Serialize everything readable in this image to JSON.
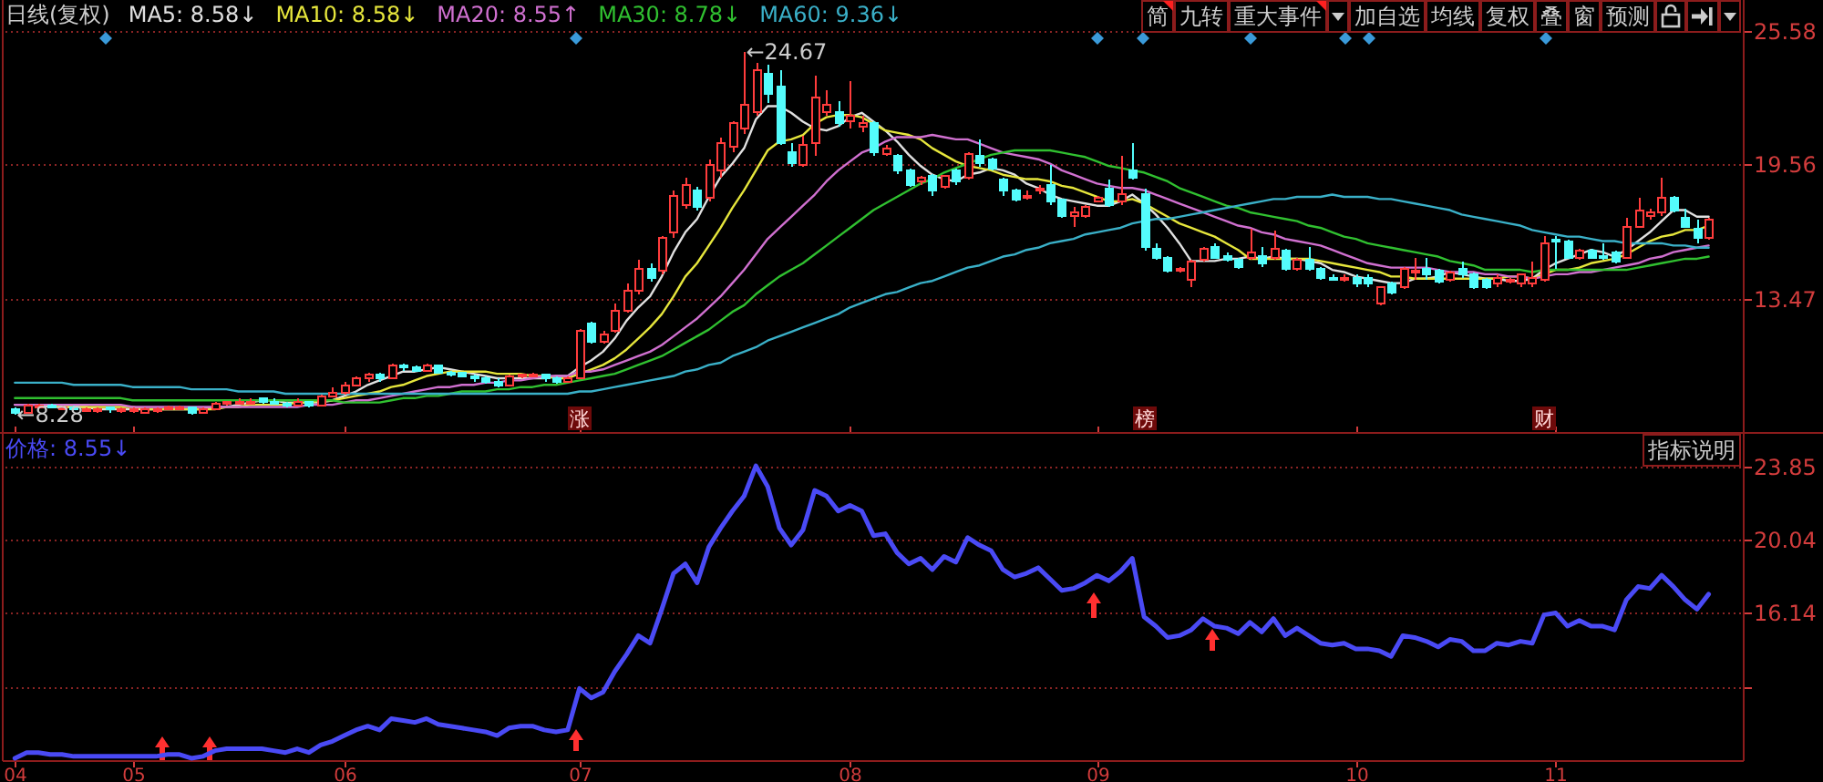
{
  "chart_data": [
    {
      "type": "candlestick",
      "title": "日线(复权)",
      "categories": [
        "04",
        null,
        null,
        null,
        null,
        null,
        null,
        null,
        null,
        null,
        "05",
        null,
        null,
        null,
        null,
        null,
        null,
        null,
        null,
        null,
        null,
        null,
        null,
        null,
        null,
        null,
        null,
        null,
        "06",
        null,
        null,
        null,
        null,
        null,
        null,
        null,
        null,
        null,
        null,
        null,
        null,
        null,
        null,
        null,
        null,
        null,
        null,
        null,
        "07",
        null,
        null,
        null,
        null,
        null,
        null,
        null,
        null,
        null,
        null,
        null,
        null,
        null,
        null,
        null,
        null,
        null,
        null,
        null,
        null,
        null,
        null,
        "08",
        null,
        null,
        null,
        null,
        null,
        null,
        null,
        null,
        null,
        null,
        null,
        null,
        null,
        null,
        null,
        null,
        null,
        null,
        null,
        null,
        "09",
        null,
        null,
        null,
        null,
        null,
        null,
        null,
        null,
        null,
        null,
        null,
        null,
        null,
        null,
        null,
        null,
        null,
        null,
        null,
        null,
        null,
        "10",
        null,
        null,
        null,
        null,
        null,
        null,
        null,
        null,
        null,
        null,
        null,
        null,
        null,
        null,
        null,
        null,
        "11",
        null,
        null,
        null,
        null,
        null,
        null,
        null,
        null,
        null,
        null,
        null,
        null,
        null
      ],
      "ohlc": [
        [
          8.5,
          8.6,
          8.28,
          8.4
        ],
        [
          8.4,
          8.8,
          8.4,
          8.7
        ],
        [
          8.6,
          8.8,
          8.6,
          8.7
        ],
        [
          8.7,
          8.8,
          8.6,
          8.6
        ],
        [
          8.6,
          8.7,
          8.5,
          8.6
        ],
        [
          8.6,
          8.7,
          8.5,
          8.5
        ],
        [
          8.5,
          8.6,
          8.5,
          8.5
        ],
        [
          8.5,
          8.6,
          8.4,
          8.5
        ],
        [
          8.6,
          8.6,
          8.4,
          8.5
        ],
        [
          8.5,
          8.6,
          8.4,
          8.5
        ],
        [
          8.5,
          8.6,
          8.4,
          8.5
        ],
        [
          8.4,
          8.6,
          8.4,
          8.5
        ],
        [
          8.5,
          8.6,
          8.4,
          8.5
        ],
        [
          8.5,
          8.7,
          8.5,
          8.6
        ],
        [
          8.5,
          8.7,
          8.5,
          8.6
        ],
        [
          8.6,
          8.6,
          8.3,
          8.4
        ],
        [
          8.4,
          8.6,
          8.4,
          8.5
        ],
        [
          8.5,
          8.9,
          8.5,
          8.8
        ],
        [
          8.8,
          8.9,
          8.7,
          8.9
        ],
        [
          8.8,
          9.0,
          8.8,
          8.9
        ],
        [
          8.8,
          9.0,
          8.8,
          8.9
        ],
        [
          9.0,
          9.0,
          8.8,
          8.9
        ],
        [
          8.9,
          9.0,
          8.8,
          8.8
        ],
        [
          8.8,
          8.9,
          8.6,
          8.7
        ],
        [
          8.7,
          9.0,
          8.7,
          8.9
        ],
        [
          8.9,
          8.9,
          8.6,
          8.7
        ],
        [
          8.7,
          9.2,
          8.7,
          9.1
        ],
        [
          9.1,
          9.5,
          9.1,
          9.3
        ],
        [
          9.3,
          9.8,
          9.2,
          9.6
        ],
        [
          9.6,
          10.0,
          9.6,
          9.9
        ],
        [
          9.9,
          10.2,
          9.8,
          10.1
        ],
        [
          10.1,
          10.2,
          9.8,
          9.9
        ],
        [
          9.9,
          10.6,
          9.9,
          10.5
        ],
        [
          10.5,
          10.6,
          10.3,
          10.4
        ],
        [
          10.4,
          10.5,
          10.3,
          10.3
        ],
        [
          10.3,
          10.6,
          10.3,
          10.5
        ],
        [
          10.5,
          10.5,
          10.2,
          10.2
        ],
        [
          10.2,
          10.3,
          10.0,
          10.1
        ],
        [
          10.2,
          10.2,
          10.0,
          10.0
        ],
        [
          10.0,
          10.1,
          9.8,
          9.9
        ],
        [
          9.9,
          10.0,
          9.7,
          9.8
        ],
        [
          9.8,
          9.9,
          9.5,
          9.6
        ],
        [
          9.6,
          10.1,
          9.6,
          10.0
        ],
        [
          10.0,
          10.1,
          9.9,
          10.1
        ],
        [
          10.0,
          10.2,
          10.0,
          10.1
        ],
        [
          10.1,
          10.1,
          9.8,
          9.9
        ],
        [
          9.9,
          10.0,
          9.7,
          9.8
        ],
        [
          9.8,
          10.0,
          9.8,
          9.9
        ],
        [
          9.9,
          12.2,
          9.9,
          12.1
        ],
        [
          12.4,
          12.5,
          11.5,
          11.6
        ],
        [
          11.6,
          12.1,
          11.5,
          11.9
        ],
        [
          12.1,
          13.3,
          12.0,
          13.0
        ],
        [
          13.0,
          14.2,
          12.9,
          13.9
        ],
        [
          13.9,
          15.3,
          13.7,
          14.9
        ],
        [
          14.9,
          15.1,
          14.3,
          14.5
        ],
        [
          14.8,
          16.4,
          14.6,
          16.3
        ],
        [
          16.5,
          18.4,
          16.3,
          18.2
        ],
        [
          17.8,
          19.0,
          17.6,
          18.7
        ],
        [
          18.4,
          18.6,
          17.5,
          17.7
        ],
        [
          18.1,
          19.8,
          17.9,
          19.6
        ],
        [
          19.3,
          20.8,
          19.0,
          20.6
        ],
        [
          20.4,
          21.6,
          20.2,
          21.5
        ],
        [
          21.2,
          24.67,
          21.0,
          22.3
        ],
        [
          22.0,
          24.2,
          21.8,
          23.9
        ],
        [
          23.7,
          24.1,
          22.4,
          22.8
        ],
        [
          23.1,
          23.9,
          20.5,
          20.6
        ],
        [
          20.2,
          20.6,
          19.5,
          19.7
        ],
        [
          19.6,
          20.9,
          19.5,
          20.5
        ],
        [
          20.6,
          23.6,
          20.0,
          22.6
        ],
        [
          22.0,
          23.0,
          21.8,
          22.3
        ],
        [
          22.0,
          22.5,
          21.3,
          21.5
        ],
        [
          21.6,
          23.4,
          21.2,
          21.8
        ],
        [
          21.3,
          21.8,
          21.1,
          21.5
        ],
        [
          21.5,
          21.6,
          20.0,
          20.2
        ],
        [
          20.1,
          20.5,
          20.0,
          20.3
        ],
        [
          20.0,
          20.1,
          19.2,
          19.3
        ],
        [
          19.3,
          19.4,
          18.6,
          18.7
        ],
        [
          18.8,
          19.1,
          18.7,
          19.0
        ],
        [
          19.1,
          19.2,
          18.2,
          18.4
        ],
        [
          18.6,
          19.1,
          18.5,
          19.1
        ],
        [
          19.3,
          19.4,
          18.7,
          18.8
        ],
        [
          19.0,
          20.2,
          18.9,
          20.1
        ],
        [
          20.0,
          20.7,
          19.5,
          19.7
        ],
        [
          19.8,
          19.9,
          19.3,
          19.4
        ],
        [
          18.9,
          19.0,
          18.2,
          18.4
        ],
        [
          18.4,
          18.5,
          17.9,
          18.0
        ],
        [
          18.1,
          18.4,
          18.0,
          18.2
        ],
        [
          18.4,
          18.7,
          18.3,
          18.5
        ],
        [
          18.7,
          19.6,
          17.8,
          17.9
        ],
        [
          18.0,
          18.0,
          17.2,
          17.3
        ],
        [
          17.3,
          17.7,
          16.8,
          17.4
        ],
        [
          17.3,
          17.8,
          17.2,
          17.7
        ],
        [
          17.9,
          18.2,
          17.9,
          18.1
        ],
        [
          18.5,
          18.9,
          17.7,
          17.8
        ],
        [
          17.9,
          20.0,
          17.8,
          18.3
        ],
        [
          19.3,
          20.6,
          18.9,
          19.0
        ],
        [
          18.3,
          18.5,
          15.7,
          15.9
        ],
        [
          15.8,
          16.0,
          15.3,
          15.4
        ],
        [
          15.4,
          15.5,
          14.7,
          14.8
        ],
        [
          14.8,
          15.0,
          14.7,
          14.9
        ],
        [
          14.4,
          15.3,
          14.1,
          15.2
        ],
        [
          15.3,
          15.9,
          15.2,
          15.8
        ],
        [
          15.9,
          16.0,
          15.4,
          15.4
        ],
        [
          15.5,
          15.6,
          15.2,
          15.3
        ],
        [
          15.3,
          15.4,
          14.9,
          15.0
        ],
        [
          15.4,
          16.7,
          15.3,
          15.6
        ],
        [
          15.5,
          15.9,
          15.0,
          15.1
        ],
        [
          15.4,
          16.6,
          15.3,
          15.8
        ],
        [
          15.7,
          15.8,
          14.8,
          14.9
        ],
        [
          14.9,
          15.4,
          14.8,
          15.3
        ],
        [
          15.3,
          15.9,
          14.8,
          14.9
        ],
        [
          14.9,
          15.0,
          14.4,
          14.5
        ],
        [
          14.5,
          14.6,
          14.4,
          14.4
        ],
        [
          14.4,
          14.6,
          14.3,
          14.5
        ],
        [
          14.5,
          14.6,
          14.1,
          14.2
        ],
        [
          14.5,
          14.6,
          14.1,
          14.2
        ],
        [
          13.3,
          14.1,
          13.2,
          14.1
        ],
        [
          14.2,
          14.3,
          13.7,
          13.8
        ],
        [
          14.1,
          15.0,
          14.0,
          14.9
        ],
        [
          14.7,
          15.4,
          14.4,
          14.8
        ],
        [
          14.9,
          15.4,
          14.4,
          14.6
        ],
        [
          14.8,
          14.9,
          14.2,
          14.3
        ],
        [
          14.4,
          14.8,
          14.3,
          14.7
        ],
        [
          14.9,
          15.2,
          14.5,
          14.6
        ],
        [
          14.6,
          14.7,
          14.0,
          14.1
        ],
        [
          14.4,
          14.5,
          14.0,
          14.1
        ],
        [
          14.2,
          14.6,
          14.1,
          14.5
        ],
        [
          14.3,
          14.5,
          14.2,
          14.4
        ],
        [
          14.2,
          14.6,
          14.1,
          14.6
        ],
        [
          14.2,
          15.2,
          14.1,
          14.5
        ],
        [
          14.4,
          16.4,
          14.3,
          16.0
        ],
        [
          16.2,
          16.4,
          14.9,
          16.1
        ],
        [
          16.1,
          16.2,
          15.4,
          15.4
        ],
        [
          15.4,
          15.8,
          15.3,
          15.7
        ],
        [
          15.7,
          15.8,
          15.4,
          15.4
        ],
        [
          15.5,
          16.0,
          15.3,
          15.4
        ],
        [
          15.6,
          15.7,
          15.1,
          15.2
        ],
        [
          15.4,
          17.2,
          15.4,
          16.8
        ],
        [
          16.8,
          18.1,
          16.8,
          17.5
        ],
        [
          17.3,
          17.6,
          17.1,
          17.4
        ],
        [
          17.4,
          19.0,
          17.3,
          18.1
        ],
        [
          18.1,
          18.2,
          17.4,
          17.5
        ],
        [
          17.2,
          17.6,
          16.8,
          16.8
        ],
        [
          16.7,
          17.1,
          16.0,
          16.3
        ],
        [
          16.3,
          17.2,
          16.2,
          17.1
        ]
      ],
      "series": [
        {
          "type": "line",
          "name": "MA5: 8.58↓",
          "color": "#e0e0e0",
          "values": [
            8.7,
            8.7,
            8.7,
            8.6,
            8.6,
            8.6,
            8.6,
            8.5,
            8.5,
            8.5,
            8.5,
            8.5,
            8.5,
            8.5,
            8.5,
            8.5,
            8.5,
            8.6,
            8.6,
            8.7,
            8.8,
            8.9,
            8.9,
            8.8,
            8.8,
            8.8,
            8.8,
            8.9,
            9.1,
            9.3,
            9.6,
            9.8,
            10.0,
            10.2,
            10.2,
            10.3,
            10.4,
            10.3,
            10.2,
            10.1,
            10.0,
            9.9,
            9.9,
            9.9,
            9.9,
            9.9,
            10.0,
            10.0,
            10.4,
            10.7,
            11.1,
            11.7,
            12.5,
            13.1,
            13.6,
            14.5,
            15.6,
            16.5,
            17.1,
            18.1,
            19.0,
            19.6,
            20.3,
            21.6,
            22.2,
            22.2,
            21.9,
            21.5,
            21.2,
            21.1,
            21.3,
            21.7,
            21.9,
            21.5,
            21.1,
            20.6,
            20.0,
            19.5,
            19.1,
            18.9,
            18.8,
            19.1,
            19.2,
            19.4,
            19.3,
            19.1,
            18.7,
            18.5,
            18.2,
            18.0,
            17.9,
            17.8,
            17.7,
            17.7,
            17.9,
            18.2,
            17.8,
            17.3,
            16.7,
            16.0,
            15.2,
            15.2,
            15.2,
            15.3,
            15.3,
            15.4,
            15.3,
            15.4,
            15.3,
            15.3,
            15.2,
            15.1,
            14.8,
            14.7,
            14.5,
            14.4,
            14.3,
            14.2,
            14.2,
            14.4,
            14.4,
            14.5,
            14.7,
            14.6,
            14.5,
            14.4,
            14.4,
            14.3,
            14.3,
            14.4,
            14.8,
            15.1,
            15.3,
            15.5,
            15.7,
            15.6,
            15.4,
            15.7,
            16.1,
            16.5,
            17.0,
            17.5,
            17.5,
            17.2,
            17.2
          ]
        },
        {
          "type": "line",
          "name": "MA10: 8.58↓",
          "color": "#e6e63c",
          "values": [
            null,
            null,
            8.7,
            8.7,
            8.6,
            8.6,
            8.6,
            8.6,
            8.6,
            8.6,
            8.6,
            8.5,
            8.5,
            8.5,
            8.5,
            8.5,
            8.5,
            8.5,
            8.6,
            8.6,
            8.7,
            8.7,
            8.7,
            8.7,
            8.8,
            8.8,
            8.9,
            8.9,
            9.0,
            9.1,
            9.2,
            9.3,
            9.5,
            9.6,
            9.8,
            10.0,
            10.1,
            10.2,
            10.2,
            10.2,
            10.2,
            10.1,
            10.1,
            10.1,
            10.0,
            10.0,
            9.9,
            9.9,
            10.1,
            10.3,
            10.5,
            10.8,
            11.2,
            11.7,
            12.2,
            12.8,
            13.6,
            14.5,
            15.1,
            15.9,
            16.7,
            17.6,
            18.4,
            19.3,
            20.2,
            20.6,
            20.7,
            20.9,
            21.4,
            21.7,
            21.8,
            21.8,
            21.7,
            21.4,
            21.1,
            21.0,
            20.9,
            20.7,
            20.3,
            20.0,
            19.7,
            19.5,
            19.4,
            19.3,
            19.1,
            19.0,
            18.9,
            18.9,
            18.8,
            18.6,
            18.5,
            18.3,
            18.1,
            17.9,
            17.9,
            18.0,
            17.8,
            17.5,
            17.2,
            16.9,
            16.7,
            16.5,
            16.3,
            16.0,
            15.7,
            15.3,
            15.3,
            15.3,
            15.3,
            15.3,
            15.3,
            15.2,
            15.1,
            15.0,
            14.9,
            14.8,
            14.7,
            14.5,
            14.5,
            14.4,
            14.4,
            14.4,
            14.4,
            14.4,
            14.4,
            14.4,
            14.4,
            14.5,
            14.5,
            14.4,
            14.6,
            14.8,
            14.8,
            14.9,
            15.1,
            15.2,
            15.3,
            15.5,
            15.8,
            16.1,
            16.3,
            16.4,
            16.6,
            16.6,
            16.8
          ]
        },
        {
          "type": "line",
          "name": "MA20: 8.55↑",
          "color": "#d070d0",
          "values": [
            8.7,
            8.7,
            8.7,
            8.7,
            8.7,
            8.7,
            8.7,
            8.7,
            8.7,
            8.7,
            8.6,
            8.6,
            8.6,
            8.6,
            8.6,
            8.6,
            8.6,
            8.6,
            8.6,
            8.6,
            8.6,
            8.6,
            8.6,
            8.6,
            8.6,
            8.7,
            8.7,
            8.7,
            8.8,
            8.9,
            8.9,
            9.0,
            9.1,
            9.2,
            9.3,
            9.4,
            9.5,
            9.5,
            9.6,
            9.6,
            9.7,
            9.7,
            9.8,
            9.8,
            9.9,
            10.0,
            10.0,
            10.0,
            10.2,
            10.2,
            10.3,
            10.5,
            10.7,
            10.9,
            11.1,
            11.4,
            11.8,
            12.2,
            12.6,
            13.1,
            13.6,
            14.2,
            14.8,
            15.5,
            16.2,
            16.7,
            17.2,
            17.7,
            18.2,
            18.8,
            19.3,
            19.7,
            20.1,
            20.3,
            20.6,
            20.8,
            20.8,
            20.8,
            20.9,
            20.8,
            20.7,
            20.7,
            20.5,
            20.3,
            20.1,
            20.0,
            19.9,
            19.8,
            19.6,
            19.3,
            19.1,
            18.9,
            18.7,
            18.6,
            18.5,
            18.5,
            18.4,
            18.2,
            18.0,
            17.8,
            17.6,
            17.4,
            17.2,
            17.0,
            16.8,
            16.7,
            16.5,
            16.4,
            16.2,
            16.1,
            16.0,
            15.9,
            15.7,
            15.5,
            15.3,
            15.1,
            15.0,
            14.9,
            14.9,
            14.9,
            14.9,
            14.8,
            14.7,
            14.7,
            14.7,
            14.6,
            14.6,
            14.5,
            14.5,
            14.4,
            14.5,
            14.6,
            14.6,
            14.7,
            14.7,
            14.8,
            14.9,
            15.0,
            15.1,
            15.3,
            15.4,
            15.6,
            15.7,
            15.8,
            15.9
          ]
        },
        {
          "type": "line",
          "name": "MA30: 8.78↓",
          "color": "#30c030",
          "values": [
            9.0,
            9.0,
            9.0,
            9.0,
            9.0,
            9.0,
            9.0,
            9.0,
            9.0,
            9.0,
            8.9,
            8.9,
            8.9,
            8.9,
            8.9,
            8.9,
            8.9,
            8.9,
            8.9,
            8.9,
            8.9,
            8.9,
            8.9,
            8.9,
            8.9,
            8.9,
            8.9,
            8.9,
            8.8,
            8.8,
            8.8,
            8.8,
            8.9,
            9.0,
            9.0,
            9.1,
            9.1,
            9.2,
            9.3,
            9.3,
            9.3,
            9.4,
            9.4,
            9.5,
            9.5,
            9.6,
            9.6,
            9.7,
            9.8,
            9.9,
            10.0,
            10.1,
            10.3,
            10.5,
            10.7,
            10.9,
            11.2,
            11.5,
            11.8,
            12.1,
            12.5,
            12.9,
            13.2,
            13.7,
            14.1,
            14.5,
            14.8,
            15.1,
            15.5,
            15.9,
            16.3,
            16.7,
            17.1,
            17.5,
            17.8,
            18.1,
            18.4,
            18.7,
            18.9,
            19.2,
            19.4,
            19.6,
            19.8,
            20.0,
            20.1,
            20.2,
            20.2,
            20.2,
            20.2,
            20.1,
            20.0,
            19.9,
            19.7,
            19.5,
            19.4,
            19.3,
            19.2,
            19.0,
            18.8,
            18.5,
            18.3,
            18.1,
            17.9,
            17.7,
            17.6,
            17.4,
            17.3,
            17.2,
            17.1,
            17.0,
            16.8,
            16.7,
            16.5,
            16.3,
            16.2,
            16.0,
            15.9,
            15.8,
            15.7,
            15.6,
            15.5,
            15.4,
            15.2,
            15.1,
            15.0,
            14.8,
            14.8,
            14.8,
            14.8,
            14.7,
            14.8,
            14.8,
            14.8,
            14.8,
            14.8,
            14.8,
            14.8,
            14.8,
            14.9,
            15.0,
            15.1,
            15.2,
            15.3,
            15.3,
            15.4
          ]
        },
        {
          "type": "line",
          "name": "MA60: 9.36↓",
          "color": "#3ab0c8",
          "values": [
            9.7,
            9.7,
            9.7,
            9.7,
            9.7,
            9.6,
            9.6,
            9.6,
            9.6,
            9.6,
            9.5,
            9.5,
            9.5,
            9.5,
            9.5,
            9.4,
            9.4,
            9.4,
            9.4,
            9.3,
            9.3,
            9.3,
            9.3,
            9.2,
            9.2,
            9.2,
            9.2,
            9.2,
            9.2,
            9.2,
            9.2,
            9.2,
            9.2,
            9.2,
            9.2,
            9.2,
            9.2,
            9.2,
            9.2,
            9.2,
            9.2,
            9.2,
            9.2,
            9.2,
            9.2,
            9.2,
            9.2,
            9.2,
            9.3,
            9.3,
            9.4,
            9.5,
            9.6,
            9.7,
            9.8,
            9.9,
            10.0,
            10.2,
            10.3,
            10.5,
            10.6,
            10.9,
            11.1,
            11.3,
            11.6,
            11.8,
            12.0,
            12.2,
            12.4,
            12.6,
            12.8,
            13.1,
            13.3,
            13.5,
            13.7,
            13.8,
            14.0,
            14.2,
            14.3,
            14.5,
            14.7,
            14.9,
            15.0,
            15.2,
            15.4,
            15.5,
            15.7,
            15.8,
            16.0,
            16.1,
            16.2,
            16.4,
            16.5,
            16.6,
            16.7,
            16.9,
            17.0,
            17.1,
            17.1,
            17.2,
            17.3,
            17.4,
            17.5,
            17.6,
            17.7,
            17.8,
            17.9,
            18.0,
            18.0,
            18.1,
            18.1,
            18.1,
            18.2,
            18.1,
            18.1,
            18.1,
            18.0,
            18.0,
            17.9,
            17.8,
            17.7,
            17.6,
            17.5,
            17.3,
            17.2,
            17.1,
            17.0,
            16.9,
            16.8,
            16.6,
            16.5,
            16.4,
            16.3,
            16.3,
            16.2,
            16.1,
            16.1,
            16.0,
            16.0,
            16.0,
            16.0,
            15.9,
            15.9,
            15.8,
            15.8
          ]
        }
      ],
      "ylim": [
        7.55,
        27
      ],
      "yticks": [
        25.58,
        19.56,
        13.47
      ],
      "tick_labels": "y",
      "grid": "y",
      "legend": "top left",
      "annotations": [
        "简",
        "九转",
        "重大事件",
        "加自选",
        "均线",
        "复权",
        "叠",
        "窗",
        "预测",
        "←24.67",
        "←8.28",
        "涨",
        "榜",
        "财"
      ]
    },
    {
      "type": "line",
      "categories": [
        "04",
        null,
        null,
        null,
        null,
        null,
        null,
        null,
        null,
        null,
        "05",
        null,
        null,
        null,
        null,
        null,
        null,
        null,
        null,
        null,
        null,
        null,
        null,
        null,
        null,
        null,
        null,
        null,
        "06",
        null,
        null,
        null,
        null,
        null,
        null,
        null,
        null,
        null,
        null,
        null,
        null,
        null,
        null,
        null,
        null,
        null,
        null,
        null,
        "07",
        null,
        null,
        null,
        null,
        null,
        null,
        null,
        null,
        null,
        null,
        null,
        null,
        null,
        null,
        null,
        null,
        null,
        null,
        null,
        null,
        null,
        null,
        "08",
        null,
        null,
        null,
        null,
        null,
        null,
        null,
        null,
        null,
        null,
        null,
        null,
        null,
        null,
        null,
        null,
        null,
        null,
        null,
        null,
        "09",
        null,
        null,
        null,
        null,
        null,
        null,
        null,
        null,
        null,
        null,
        null,
        null,
        null,
        null,
        null,
        null,
        null,
        null,
        null,
        null,
        null,
        "10",
        null,
        null,
        null,
        null,
        null,
        null,
        null,
        null,
        null,
        null,
        null,
        null,
        null,
        null,
        null,
        null,
        "11",
        null,
        null,
        null,
        null,
        null,
        null,
        null,
        null,
        null,
        null,
        null,
        null,
        null
      ],
      "series": [
        {
          "name": "价格: 8.55↓",
          "color": "#4a4af5",
          "values": [
            8.4,
            8.7,
            8.7,
            8.6,
            8.6,
            8.5,
            8.5,
            8.5,
            8.5,
            8.5,
            8.5,
            8.5,
            8.5,
            8.6,
            8.6,
            8.4,
            8.5,
            8.8,
            8.9,
            8.9,
            8.9,
            8.9,
            8.8,
            8.7,
            8.9,
            8.7,
            9.1,
            9.3,
            9.6,
            9.9,
            10.1,
            9.9,
            10.5,
            10.4,
            10.3,
            10.5,
            10.2,
            10.1,
            10.0,
            9.9,
            9.8,
            9.6,
            10.0,
            10.1,
            10.1,
            9.9,
            9.8,
            9.9,
            12.1,
            11.6,
            11.9,
            13.0,
            13.9,
            14.9,
            14.5,
            16.3,
            18.2,
            18.7,
            17.7,
            19.6,
            20.6,
            21.5,
            22.3,
            23.9,
            22.8,
            20.6,
            19.7,
            20.5,
            22.6,
            22.3,
            21.5,
            21.8,
            21.5,
            20.2,
            20.3,
            19.3,
            18.7,
            19.0,
            18.4,
            19.1,
            18.8,
            20.1,
            19.7,
            19.4,
            18.4,
            18.0,
            18.2,
            18.5,
            17.9,
            17.3,
            17.4,
            17.7,
            18.1,
            17.8,
            18.3,
            19.0,
            15.9,
            15.4,
            14.8,
            14.9,
            15.2,
            15.8,
            15.4,
            15.3,
            15.0,
            15.6,
            15.1,
            15.8,
            14.9,
            15.3,
            14.9,
            14.5,
            14.4,
            14.5,
            14.2,
            14.2,
            14.1,
            13.8,
            14.9,
            14.8,
            14.6,
            14.3,
            14.7,
            14.6,
            14.1,
            14.1,
            14.5,
            14.4,
            14.6,
            14.5,
            16.0,
            16.1,
            15.4,
            15.7,
            15.4,
            15.4,
            15.2,
            16.8,
            17.5,
            17.4,
            18.1,
            17.5,
            16.8,
            16.3,
            17.1
          ]
        }
      ],
      "ylim": [
        8.3,
        25.5
      ],
      "yticks": [
        23.85,
        20.04,
        16.14,
        {
          "value": 12.2,
          "label": null
        }
      ],
      "grid": "y",
      "legend": "top left",
      "annotations": [
        "指标说明"
      ]
    }
  ]
}
